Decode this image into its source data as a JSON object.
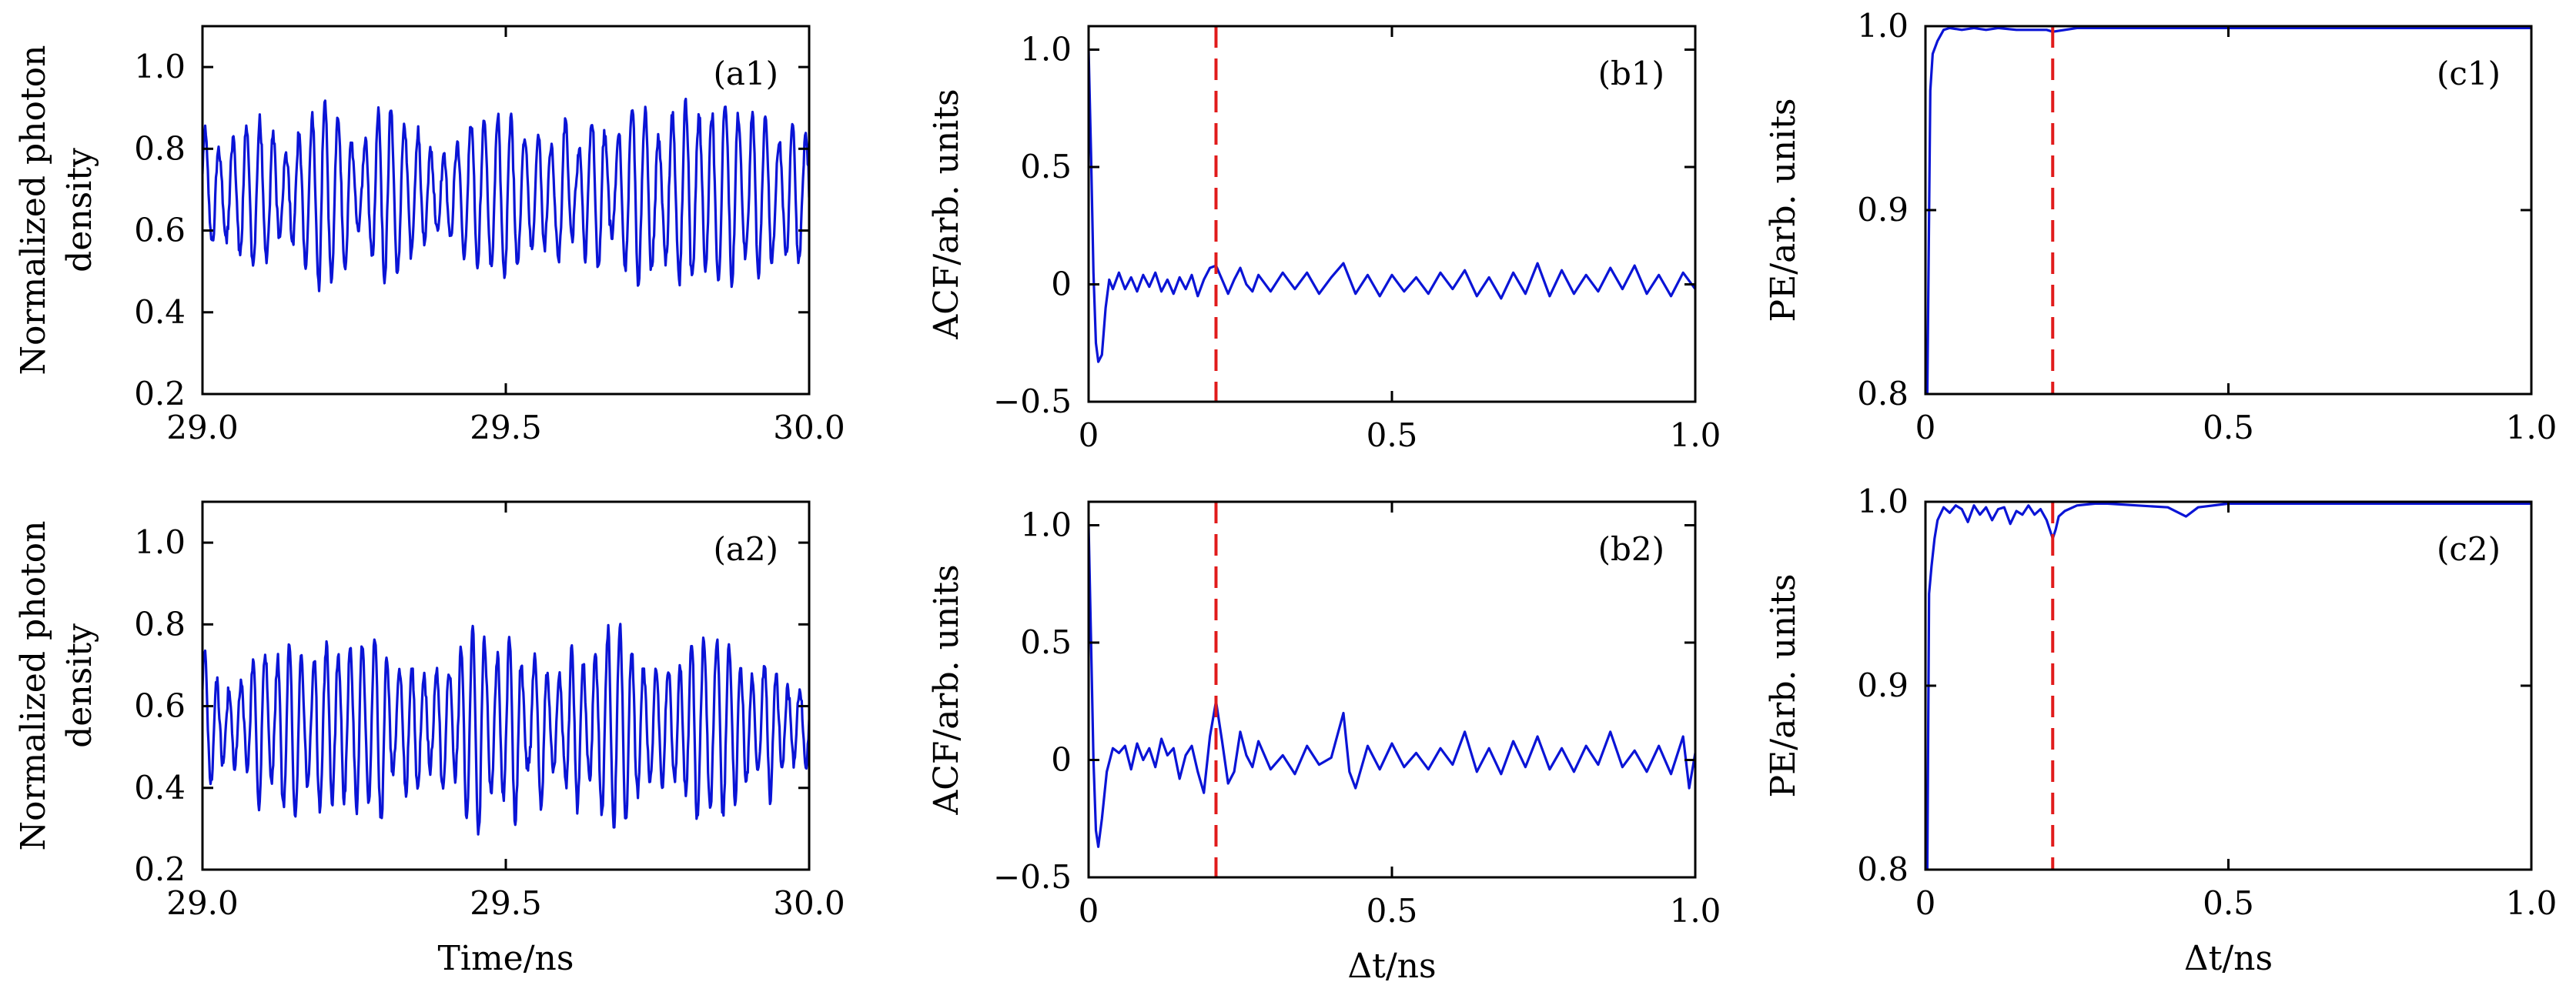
{
  "figure": {
    "colors": {
      "trace": "#0a14d6",
      "marker_line": "#e11b1b",
      "axes": "#000000"
    },
    "marker_line": {
      "x": 0.21,
      "style": "dashed"
    }
  },
  "chart_data": [
    {
      "id": "a1",
      "type": "line",
      "panel_label": "(a1)",
      "xlabel": "",
      "ylabel_lines": [
        "Normalized photon",
        "density"
      ],
      "xlim": [
        29.0,
        30.0
      ],
      "ylim": [
        0.2,
        1.1
      ],
      "xticks": [
        29.0,
        29.5,
        30.0
      ],
      "xtick_labels": [
        "29.0",
        "29.5",
        "30.0"
      ],
      "yticks": [
        0.2,
        0.4,
        0.6,
        0.8,
        1.0
      ],
      "ytick_labels": [
        "0.2",
        "0.4",
        "0.6",
        "0.8",
        "1.0"
      ],
      "grid": false,
      "signal": {
        "kind": "oscillation",
        "seed": 11,
        "mean": 0.69,
        "amp": 0.2,
        "period_ns": 0.022,
        "n": 900
      },
      "annotations": [
        {
          "type": "label",
          "text": "(a1)",
          "position": "top-right"
        }
      ]
    },
    {
      "id": "b1",
      "type": "line",
      "panel_label": "(b1)",
      "xlabel": "",
      "ylabel": "ACF/arb. units",
      "xlim": [
        0,
        1.0
      ],
      "ylim": [
        -0.5,
        1.1
      ],
      "xticks": [
        0,
        0.5,
        1.0
      ],
      "xtick_labels": [
        "0",
        "0.5",
        "1.0"
      ],
      "yticks": [
        -0.5,
        0,
        0.5,
        1.0
      ],
      "ytick_labels": [
        "−0.5",
        "0",
        "0.5",
        "1.0"
      ],
      "grid": false,
      "points": [
        [
          0,
          1.0
        ],
        [
          0.004,
          0.55
        ],
        [
          0.008,
          0.05
        ],
        [
          0.012,
          -0.25
        ],
        [
          0.016,
          -0.33
        ],
        [
          0.022,
          -0.3
        ],
        [
          0.028,
          -0.1
        ],
        [
          0.034,
          0.02
        ],
        [
          0.04,
          -0.02
        ],
        [
          0.05,
          0.05
        ],
        [
          0.06,
          -0.02
        ],
        [
          0.07,
          0.03
        ],
        [
          0.08,
          -0.03
        ],
        [
          0.09,
          0.04
        ],
        [
          0.1,
          -0.01
        ],
        [
          0.11,
          0.05
        ],
        [
          0.12,
          -0.03
        ],
        [
          0.13,
          0.02
        ],
        [
          0.14,
          -0.04
        ],
        [
          0.15,
          0.03
        ],
        [
          0.16,
          -0.02
        ],
        [
          0.17,
          0.04
        ],
        [
          0.18,
          -0.05
        ],
        [
          0.19,
          0.02
        ],
        [
          0.2,
          0.07
        ],
        [
          0.21,
          0.08
        ],
        [
          0.22,
          0.02
        ],
        [
          0.23,
          -0.04
        ],
        [
          0.24,
          0.02
        ],
        [
          0.25,
          0.07
        ],
        [
          0.26,
          0.0
        ],
        [
          0.27,
          -0.03
        ],
        [
          0.28,
          0.04
        ],
        [
          0.3,
          -0.03
        ],
        [
          0.32,
          0.05
        ],
        [
          0.34,
          -0.02
        ],
        [
          0.36,
          0.05
        ],
        [
          0.38,
          -0.04
        ],
        [
          0.4,
          0.03
        ],
        [
          0.42,
          0.09
        ],
        [
          0.44,
          -0.04
        ],
        [
          0.46,
          0.04
        ],
        [
          0.48,
          -0.05
        ],
        [
          0.5,
          0.04
        ],
        [
          0.52,
          -0.03
        ],
        [
          0.54,
          0.03
        ],
        [
          0.56,
          -0.04
        ],
        [
          0.58,
          0.05
        ],
        [
          0.6,
          -0.02
        ],
        [
          0.62,
          0.06
        ],
        [
          0.64,
          -0.05
        ],
        [
          0.66,
          0.03
        ],
        [
          0.68,
          -0.06
        ],
        [
          0.7,
          0.05
        ],
        [
          0.72,
          -0.04
        ],
        [
          0.74,
          0.09
        ],
        [
          0.76,
          -0.05
        ],
        [
          0.78,
          0.06
        ],
        [
          0.8,
          -0.04
        ],
        [
          0.82,
          0.04
        ],
        [
          0.84,
          -0.03
        ],
        [
          0.86,
          0.07
        ],
        [
          0.88,
          -0.02
        ],
        [
          0.9,
          0.08
        ],
        [
          0.92,
          -0.04
        ],
        [
          0.94,
          0.04
        ],
        [
          0.96,
          -0.05
        ],
        [
          0.98,
          0.05
        ],
        [
          1.0,
          -0.02
        ]
      ],
      "annotations": [
        {
          "type": "label",
          "text": "(b1)",
          "position": "top-right"
        }
      ]
    },
    {
      "id": "c1",
      "type": "line",
      "panel_label": "(c1)",
      "xlabel": "",
      "ylabel": "PE/arb. units",
      "xlim": [
        0,
        1.0
      ],
      "ylim": [
        0.8,
        1.0
      ],
      "xticks": [
        0,
        0.5,
        1.0
      ],
      "xtick_labels": [
        "0",
        "0.5",
        "1.0"
      ],
      "yticks": [
        0.8,
        0.9,
        1.0
      ],
      "ytick_labels": [
        "0.8",
        "0.9",
        "1.0"
      ],
      "grid": false,
      "points": [
        [
          0.003,
          0.8
        ],
        [
          0.008,
          0.965
        ],
        [
          0.012,
          0.985
        ],
        [
          0.02,
          0.992
        ],
        [
          0.03,
          0.998
        ],
        [
          0.04,
          0.999
        ],
        [
          0.06,
          0.998
        ],
        [
          0.08,
          0.999
        ],
        [
          0.1,
          0.998
        ],
        [
          0.12,
          0.999
        ],
        [
          0.15,
          0.998
        ],
        [
          0.2,
          0.998
        ],
        [
          0.21,
          0.997
        ],
        [
          0.25,
          0.999
        ],
        [
          0.3,
          0.999
        ],
        [
          0.4,
          0.999
        ],
        [
          0.5,
          0.999
        ],
        [
          0.6,
          0.999
        ],
        [
          0.7,
          0.999
        ],
        [
          0.8,
          0.999
        ],
        [
          0.9,
          0.999
        ],
        [
          1.0,
          0.999
        ]
      ],
      "annotations": [
        {
          "type": "label",
          "text": "(c1)",
          "position": "top-right"
        }
      ]
    },
    {
      "id": "a2",
      "type": "line",
      "panel_label": "(a2)",
      "xlabel": "Time/ns",
      "ylabel_lines": [
        "Normalized photon",
        "density"
      ],
      "xlim": [
        29.0,
        30.0
      ],
      "ylim": [
        0.2,
        1.1
      ],
      "xticks": [
        29.0,
        29.5,
        30.0
      ],
      "xtick_labels": [
        "29.0",
        "29.5",
        "30.0"
      ],
      "yticks": [
        0.2,
        0.4,
        0.6,
        0.8,
        1.0
      ],
      "ytick_labels": [
        "0.2",
        "0.4",
        "0.6",
        "0.8",
        "1.0"
      ],
      "grid": false,
      "signal": {
        "kind": "oscillation",
        "seed": 29,
        "mean": 0.55,
        "amp": 0.22,
        "period_ns": 0.02,
        "n": 900
      },
      "annotations": [
        {
          "type": "label",
          "text": "(a2)",
          "position": "top-right"
        }
      ]
    },
    {
      "id": "b2",
      "type": "line",
      "panel_label": "(b2)",
      "xlabel": "Δt/ns",
      "ylabel": "ACF/arb. units",
      "xlim": [
        0,
        1.0
      ],
      "ylim": [
        -0.5,
        1.1
      ],
      "xticks": [
        0,
        0.5,
        1.0
      ],
      "xtick_labels": [
        "0",
        "0.5",
        "1.0"
      ],
      "yticks": [
        -0.5,
        0,
        0.5,
        1.0
      ],
      "ytick_labels": [
        "−0.5",
        "0",
        "0.5",
        "1.0"
      ],
      "grid": false,
      "points": [
        [
          0,
          1.0
        ],
        [
          0.004,
          0.5
        ],
        [
          0.008,
          0.0
        ],
        [
          0.012,
          -0.3
        ],
        [
          0.016,
          -0.37
        ],
        [
          0.022,
          -0.25
        ],
        [
          0.03,
          -0.05
        ],
        [
          0.04,
          0.05
        ],
        [
          0.05,
          0.03
        ],
        [
          0.06,
          0.06
        ],
        [
          0.07,
          -0.04
        ],
        [
          0.08,
          0.07
        ],
        [
          0.09,
          0.0
        ],
        [
          0.1,
          0.05
        ],
        [
          0.11,
          -0.03
        ],
        [
          0.12,
          0.09
        ],
        [
          0.13,
          0.02
        ],
        [
          0.14,
          0.05
        ],
        [
          0.15,
          -0.08
        ],
        [
          0.16,
          0.02
        ],
        [
          0.17,
          0.06
        ],
        [
          0.18,
          -0.05
        ],
        [
          0.19,
          -0.14
        ],
        [
          0.2,
          0.1
        ],
        [
          0.21,
          0.25
        ],
        [
          0.22,
          0.08
        ],
        [
          0.23,
          -0.1
        ],
        [
          0.24,
          -0.05
        ],
        [
          0.25,
          0.12
        ],
        [
          0.26,
          0.02
        ],
        [
          0.27,
          -0.03
        ],
        [
          0.28,
          0.08
        ],
        [
          0.3,
          -0.04
        ],
        [
          0.32,
          0.02
        ],
        [
          0.34,
          -0.06
        ],
        [
          0.36,
          0.06
        ],
        [
          0.38,
          -0.02
        ],
        [
          0.4,
          0.01
        ],
        [
          0.42,
          0.2
        ],
        [
          0.43,
          -0.05
        ],
        [
          0.44,
          -0.12
        ],
        [
          0.46,
          0.06
        ],
        [
          0.48,
          -0.04
        ],
        [
          0.5,
          0.07
        ],
        [
          0.52,
          -0.03
        ],
        [
          0.54,
          0.03
        ],
        [
          0.56,
          -0.04
        ],
        [
          0.58,
          0.05
        ],
        [
          0.6,
          -0.02
        ],
        [
          0.62,
          0.12
        ],
        [
          0.64,
          -0.05
        ],
        [
          0.66,
          0.05
        ],
        [
          0.68,
          -0.06
        ],
        [
          0.7,
          0.08
        ],
        [
          0.72,
          -0.03
        ],
        [
          0.74,
          0.1
        ],
        [
          0.76,
          -0.04
        ],
        [
          0.78,
          0.05
        ],
        [
          0.8,
          -0.05
        ],
        [
          0.82,
          0.06
        ],
        [
          0.84,
          -0.02
        ],
        [
          0.86,
          0.12
        ],
        [
          0.88,
          -0.03
        ],
        [
          0.9,
          0.04
        ],
        [
          0.92,
          -0.05
        ],
        [
          0.94,
          0.06
        ],
        [
          0.96,
          -0.06
        ],
        [
          0.98,
          0.1
        ],
        [
          0.99,
          -0.12
        ],
        [
          1.0,
          0.03
        ]
      ],
      "annotations": [
        {
          "type": "label",
          "text": "(b2)",
          "position": "top-right"
        }
      ]
    },
    {
      "id": "c2",
      "type": "line",
      "panel_label": "(c2)",
      "xlabel": "Δt/ns",
      "ylabel": "PE/arb. units",
      "xlim": [
        0,
        1.0
      ],
      "ylim": [
        0.8,
        1.0
      ],
      "xticks": [
        0,
        0.5,
        1.0
      ],
      "xtick_labels": [
        "0",
        "0.5",
        "1.0"
      ],
      "yticks": [
        0.8,
        0.9,
        1.0
      ],
      "ytick_labels": [
        "0.8",
        "0.9",
        "1.0"
      ],
      "grid": false,
      "points": [
        [
          0.003,
          0.8
        ],
        [
          0.006,
          0.95
        ],
        [
          0.01,
          0.965
        ],
        [
          0.015,
          0.98
        ],
        [
          0.02,
          0.99
        ],
        [
          0.03,
          0.997
        ],
        [
          0.04,
          0.994
        ],
        [
          0.05,
          0.998
        ],
        [
          0.06,
          0.996
        ],
        [
          0.07,
          0.989
        ],
        [
          0.08,
          0.998
        ],
        [
          0.09,
          0.993
        ],
        [
          0.1,
          0.997
        ],
        [
          0.11,
          0.99
        ],
        [
          0.12,
          0.996
        ],
        [
          0.13,
          0.997
        ],
        [
          0.14,
          0.988
        ],
        [
          0.15,
          0.995
        ],
        [
          0.16,
          0.993
        ],
        [
          0.17,
          0.998
        ],
        [
          0.18,
          0.993
        ],
        [
          0.19,
          0.996
        ],
        [
          0.2,
          0.99
        ],
        [
          0.21,
          0.98
        ],
        [
          0.215,
          0.985
        ],
        [
          0.22,
          0.992
        ],
        [
          0.23,
          0.995
        ],
        [
          0.25,
          0.998
        ],
        [
          0.28,
          0.999
        ],
        [
          0.3,
          0.999
        ],
        [
          0.35,
          0.998
        ],
        [
          0.4,
          0.997
        ],
        [
          0.43,
          0.992
        ],
        [
          0.45,
          0.997
        ],
        [
          0.5,
          0.999
        ],
        [
          0.6,
          0.999
        ],
        [
          0.7,
          0.999
        ],
        [
          0.8,
          0.999
        ],
        [
          0.9,
          0.999
        ],
        [
          1.0,
          0.999
        ]
      ],
      "annotations": [
        {
          "type": "label",
          "text": "(c2)",
          "position": "top-right"
        }
      ]
    }
  ]
}
